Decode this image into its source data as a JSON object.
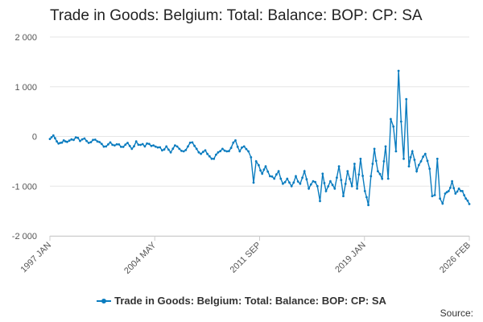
{
  "chart_data": {
    "type": "line",
    "title": "Trade in Goods: Belgium: Total: Balance: BOP: CP: SA",
    "xlabel": "",
    "ylabel": "",
    "ylim": [
      -2000,
      2000
    ],
    "y_ticks": [
      2000,
      1000,
      0,
      -1000,
      -2000
    ],
    "y_tick_labels": [
      "2 000",
      "1 000",
      "0",
      "-1 000",
      "-2 000"
    ],
    "x_tick_labels": [
      "1997 JAN",
      "2004 MAY",
      "2011 SEP",
      "2019 JAN",
      "2026 FEB"
    ],
    "x_range": [
      "1997 JAN",
      "2026 FEB"
    ],
    "grid": true,
    "legend_position": "bottom",
    "series": [
      {
        "name": "Trade in Goods: Belgium: Total: Balance: BOP: CP: SA",
        "color": "#0a7cbf",
        "sampled": [
          {
            "t": 0.0,
            "v": -50
          },
          {
            "t": 0.4,
            "v": 20
          },
          {
            "t": 0.8,
            "v": -100
          },
          {
            "t": 1.2,
            "v": -130
          },
          {
            "t": 1.6,
            "v": -80
          },
          {
            "t": 2.0,
            "v": -110
          },
          {
            "t": 2.5,
            "v": -60
          },
          {
            "t": 3.0,
            "v": -20
          },
          {
            "t": 3.5,
            "v": -90
          },
          {
            "t": 4.0,
            "v": -40
          },
          {
            "t": 4.5,
            "v": -130
          },
          {
            "t": 5.0,
            "v": -70
          },
          {
            "t": 5.5,
            "v": -100
          },
          {
            "t": 6.0,
            "v": -150
          },
          {
            "t": 6.5,
            "v": -200
          },
          {
            "t": 7.0,
            "v": -120
          },
          {
            "t": 7.5,
            "v": -180
          },
          {
            "t": 8.0,
            "v": -160
          },
          {
            "t": 8.5,
            "v": -210
          },
          {
            "t": 9.0,
            "v": -130
          },
          {
            "t": 9.5,
            "v": -250
          },
          {
            "t": 10.0,
            "v": -100
          },
          {
            "t": 10.5,
            "v": -170
          },
          {
            "t": 11.0,
            "v": -200
          },
          {
            "t": 11.5,
            "v": -150
          },
          {
            "t": 12.0,
            "v": -180
          },
          {
            "t": 12.5,
            "v": -220
          },
          {
            "t": 13.0,
            "v": -280
          },
          {
            "t": 13.5,
            "v": -200
          },
          {
            "t": 14.0,
            "v": -320
          },
          {
            "t": 14.5,
            "v": -180
          },
          {
            "t": 15.0,
            "v": -250
          },
          {
            "t": 15.5,
            "v": -300
          },
          {
            "t": 16.0,
            "v": -200
          },
          {
            "t": 16.5,
            "v": -120
          },
          {
            "t": 17.0,
            "v": -250
          },
          {
            "t": 17.5,
            "v": -350
          },
          {
            "t": 18.0,
            "v": -280
          },
          {
            "t": 18.5,
            "v": -400
          },
          {
            "t": 19.0,
            "v": -450
          },
          {
            "t": 19.5,
            "v": -320
          },
          {
            "t": 20.0,
            "v": -250
          },
          {
            "t": 20.5,
            "v": -300
          },
          {
            "t": 21.0,
            "v": -230
          },
          {
            "t": 21.5,
            "v": -80
          },
          {
            "t": 22.0,
            "v": -300
          },
          {
            "t": 22.5,
            "v": -200
          },
          {
            "t": 23.0,
            "v": -300
          },
          {
            "t": 23.3,
            "v": -420
          },
          {
            "t": 23.6,
            "v": -930
          },
          {
            "t": 23.9,
            "v": -500
          },
          {
            "t": 24.2,
            "v": -580
          },
          {
            "t": 24.6,
            "v": -750
          },
          {
            "t": 25.0,
            "v": -600
          },
          {
            "t": 25.5,
            "v": -800
          },
          {
            "t": 26.0,
            "v": -850
          },
          {
            "t": 26.5,
            "v": -700
          },
          {
            "t": 27.0,
            "v": -950
          },
          {
            "t": 27.5,
            "v": -850
          },
          {
            "t": 28.0,
            "v": -1000
          },
          {
            "t": 28.5,
            "v": -800
          },
          {
            "t": 29.0,
            "v": -950
          },
          {
            "t": 29.5,
            "v": -700
          },
          {
            "t": 30.0,
            "v": -1050
          },
          {
            "t": 30.5,
            "v": -900
          },
          {
            "t": 31.0,
            "v": -1000
          },
          {
            "t": 31.3,
            "v": -1300
          },
          {
            "t": 31.6,
            "v": -750
          },
          {
            "t": 32.0,
            "v": -1100
          },
          {
            "t": 32.5,
            "v": -900
          },
          {
            "t": 33.0,
            "v": -1050
          },
          {
            "t": 33.5,
            "v": -600
          },
          {
            "t": 34.0,
            "v": -1200
          },
          {
            "t": 34.5,
            "v": -700
          },
          {
            "t": 35.0,
            "v": -1000
          },
          {
            "t": 35.3,
            "v": -550
          },
          {
            "t": 35.6,
            "v": -1050
          },
          {
            "t": 36.0,
            "v": -450
          },
          {
            "t": 36.5,
            "v": -1100
          },
          {
            "t": 36.9,
            "v": -1380
          },
          {
            "t": 37.2,
            "v": -800
          },
          {
            "t": 37.6,
            "v": -250
          },
          {
            "t": 38.0,
            "v": -700
          },
          {
            "t": 38.5,
            "v": -850
          },
          {
            "t": 38.9,
            "v": -200
          },
          {
            "t": 39.2,
            "v": -850
          },
          {
            "t": 39.5,
            "v": 350
          },
          {
            "t": 39.8,
            "v": 200
          },
          {
            "t": 40.1,
            "v": -300
          },
          {
            "t": 40.4,
            "v": 1320
          },
          {
            "t": 40.7,
            "v": 300
          },
          {
            "t": 41.0,
            "v": -450
          },
          {
            "t": 41.3,
            "v": 750
          },
          {
            "t": 41.6,
            "v": -600
          },
          {
            "t": 42.0,
            "v": -300
          },
          {
            "t": 42.5,
            "v": -700
          },
          {
            "t": 43.0,
            "v": -500
          },
          {
            "t": 43.5,
            "v": -350
          },
          {
            "t": 44.0,
            "v": -650
          },
          {
            "t": 44.3,
            "v": -1200
          },
          {
            "t": 44.6,
            "v": -1180
          },
          {
            "t": 44.9,
            "v": -450
          },
          {
            "t": 45.2,
            "v": -1250
          },
          {
            "t": 45.5,
            "v": -1350
          },
          {
            "t": 45.8,
            "v": -1150
          },
          {
            "t": 46.2,
            "v": -1100
          },
          {
            "t": 46.6,
            "v": -900
          },
          {
            "t": 47.0,
            "v": -1150
          },
          {
            "t": 47.4,
            "v": -1050
          },
          {
            "t": 47.8,
            "v": -1100
          },
          {
            "t": 48.2,
            "v": -1250
          },
          {
            "t": 48.6,
            "v": -1360
          }
        ]
      }
    ],
    "source_label": "Source:"
  }
}
